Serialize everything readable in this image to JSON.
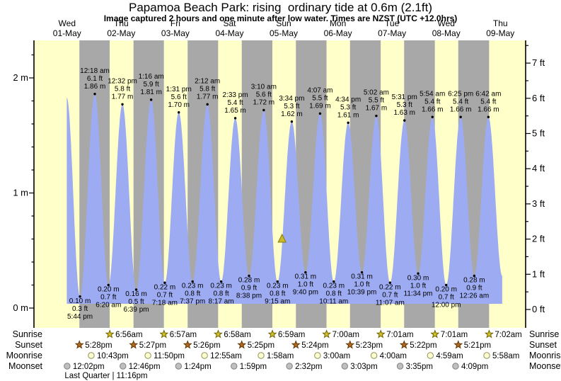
{
  "chart_data": {
    "type": "area",
    "title": "Papamoa Beach Park: rising  ordinary tide at 0.6m (2.1ft)",
    "subtitle": "Image captured 2 hours and one minute after low water. Times are NZST (UTC +12.0hrs)",
    "y_axis_left": {
      "unit": "m",
      "ticks": [
        "0 m",
        "1 m",
        "2 m"
      ],
      "range_m": [
        0,
        2.3
      ]
    },
    "y_axis_right": {
      "unit": "ft",
      "ticks": [
        "0 ft",
        "1 ft",
        "2 ft",
        "3 ft",
        "4 ft",
        "5 ft",
        "6 ft",
        "7 ft"
      ]
    },
    "days": [
      {
        "dow": "Wed",
        "date": "01-May"
      },
      {
        "dow": "Thu",
        "date": "02-May"
      },
      {
        "dow": "Fri",
        "date": "03-May"
      },
      {
        "dow": "Sat",
        "date": "04-May"
      },
      {
        "dow": "Sun",
        "date": "05-May"
      },
      {
        "dow": "Mon",
        "date": "06-May"
      },
      {
        "dow": "Tue",
        "date": "07-May"
      },
      {
        "dow": "Wed",
        "date": "08-May"
      },
      {
        "dow": "Thu",
        "date": "09-May"
      }
    ],
    "high_tides": [
      {
        "day": 2,
        "time": "12:18 am",
        "ft": 6.1,
        "m": 1.86
      },
      {
        "day": 2,
        "time": "12:32 pm",
        "ft": 5.8,
        "m": 1.77
      },
      {
        "day": 3,
        "time": "1:16 am",
        "ft": 5.9,
        "m": 1.81
      },
      {
        "day": 3,
        "time": "1:31 pm",
        "ft": 5.6,
        "m": 1.7
      },
      {
        "day": 4,
        "time": "2:12 am",
        "ft": 5.8,
        "m": 1.77
      },
      {
        "day": 4,
        "time": "2:33 pm",
        "ft": 5.4,
        "m": 1.65
      },
      {
        "day": 5,
        "time": "3:10 am",
        "ft": 5.6,
        "m": 1.72
      },
      {
        "day": 5,
        "time": "3:34 pm",
        "ft": 5.3,
        "m": 1.62
      },
      {
        "day": 6,
        "time": "4:07 am",
        "ft": 5.5,
        "m": 1.69
      },
      {
        "day": 6,
        "time": "4:34 pm",
        "ft": 5.3,
        "m": 1.61
      },
      {
        "day": 7,
        "time": "5:02 am",
        "ft": 5.5,
        "m": 1.67
      },
      {
        "day": 7,
        "time": "5:31 pm",
        "ft": 5.3,
        "m": 1.63
      },
      {
        "day": 8,
        "time": "5:54 am",
        "ft": 5.4,
        "m": 1.66
      },
      {
        "day": 8,
        "time": "6:25 pm",
        "ft": 5.4,
        "m": 1.66
      },
      {
        "day": 9,
        "time": "6:42 am",
        "ft": 5.4,
        "m": 1.66
      }
    ],
    "low_tides": [
      {
        "day": 1,
        "time": "5:44 pm",
        "ft": 0.3,
        "m": 0.1
      },
      {
        "day": 2,
        "time": "6:20 am",
        "ft": 0.7,
        "m": 0.2
      },
      {
        "day": 2,
        "time": "6:39 pm",
        "ft": 0.5,
        "m": 0.16
      },
      {
        "day": 3,
        "time": "7:18 am",
        "ft": 0.7,
        "m": 0.22
      },
      {
        "day": 3,
        "time": "7:37 pm",
        "ft": 0.8,
        "m": 0.23
      },
      {
        "day": 4,
        "time": "8:17 am",
        "ft": 0.8,
        "m": 0.23
      },
      {
        "day": 4,
        "time": "8:38 pm",
        "ft": 0.9,
        "m": 0.28
      },
      {
        "day": 5,
        "time": "9:15 am",
        "ft": 0.8,
        "m": 0.23
      },
      {
        "day": 5,
        "time": "9:40 pm",
        "ft": 1.0,
        "m": 0.31
      },
      {
        "day": 6,
        "time": "10:11 am",
        "ft": 0.8,
        "m": 0.23
      },
      {
        "day": 6,
        "time": "10:39 pm",
        "ft": 1.0,
        "m": 0.31
      },
      {
        "day": 7,
        "time": "11:07 am",
        "ft": 0.7,
        "m": 0.22
      },
      {
        "day": 7,
        "time": "11:34 pm",
        "ft": 1.0,
        "m": 0.3
      },
      {
        "day": 8,
        "time": "12:00 pm",
        "ft": 0.7,
        "m": 0.2
      },
      {
        "day": 9,
        "time": "12:26 am",
        "ft": 0.9,
        "m": 0.28
      }
    ],
    "curve_edges": {
      "start": {
        "day": 1,
        "time": "11:52 am",
        "m": 1.83
      },
      "end": {
        "day": 9,
        "time": "12:50 pm",
        "m": 0.28
      }
    },
    "current_level": {
      "day": 5,
      "time": "11:16 am",
      "m": 0.6
    },
    "sun_moon": {
      "rows": [
        {
          "label": "Sunrise",
          "icon": "sunrise-star-icon",
          "events": [
            {
              "day": 2,
              "time": "6:56am"
            },
            {
              "day": 3,
              "time": "6:57am"
            },
            {
              "day": 4,
              "time": "6:58am"
            },
            {
              "day": 5,
              "time": "6:59am"
            },
            {
              "day": 6,
              "time": "7:00am"
            },
            {
              "day": 7,
              "time": "7:01am"
            },
            {
              "day": 8,
              "time": "7:01am"
            },
            {
              "day": 9,
              "time": "7:02am"
            }
          ]
        },
        {
          "label": "Sunset",
          "icon": "sunset-star-icon",
          "events": [
            {
              "day": 1,
              "time": "5:28pm"
            },
            {
              "day": 2,
              "time": "5:27pm"
            },
            {
              "day": 3,
              "time": "5:26pm"
            },
            {
              "day": 4,
              "time": "5:25pm"
            },
            {
              "day": 5,
              "time": "5:24pm"
            },
            {
              "day": 6,
              "time": "5:23pm"
            },
            {
              "day": 7,
              "time": "5:22pm"
            },
            {
              "day": 8,
              "time": "5:21pm"
            }
          ]
        },
        {
          "label": "Moonrise",
          "icon": "moonrise-circle-icon",
          "events": [
            {
              "day": 1,
              "time": "10:43pm"
            },
            {
              "day": 2,
              "time": "11:50pm"
            },
            {
              "day": 4,
              "time": "12:55am"
            },
            {
              "day": 5,
              "time": "1:58am"
            },
            {
              "day": 6,
              "time": "3:00am"
            },
            {
              "day": 7,
              "time": "4:00am"
            },
            {
              "day": 8,
              "time": "4:59am"
            },
            {
              "day": 9,
              "time": "5:58am"
            }
          ]
        },
        {
          "label": "Moonset",
          "icon": "moonset-circle-icon",
          "events": [
            {
              "day": 1,
              "time": "12:02pm"
            },
            {
              "day": 2,
              "time": "12:46pm"
            },
            {
              "day": 3,
              "time": "1:24pm"
            },
            {
              "day": 4,
              "time": "1:59pm"
            },
            {
              "day": 5,
              "time": "2:32pm"
            },
            {
              "day": 6,
              "time": "3:03pm"
            },
            {
              "day": 7,
              "time": "3:35pm"
            },
            {
              "day": 8,
              "time": "4:09pm"
            }
          ]
        }
      ],
      "note": "Last Quarter | 11:16pm"
    },
    "colors": {
      "day_band": "#ffffc9",
      "night_band": "#a8a8a8",
      "tide_fill": "#9dabf2",
      "date_text": "#f40000",
      "marker": "#c9b92f",
      "marker_stroke": "#8a7d00",
      "sunrise_star": "#d2c12f",
      "sunrise_star_stroke": "#6e6400",
      "sunset_star": "#b2661f",
      "sunset_star_stroke": "#5f3a06",
      "moonrise_circle": "#ffffcf",
      "moonrise_circle_stroke": "#90905c",
      "moonset_circle": "#bfbfbf",
      "moonset_circle_stroke": "#808080"
    }
  }
}
